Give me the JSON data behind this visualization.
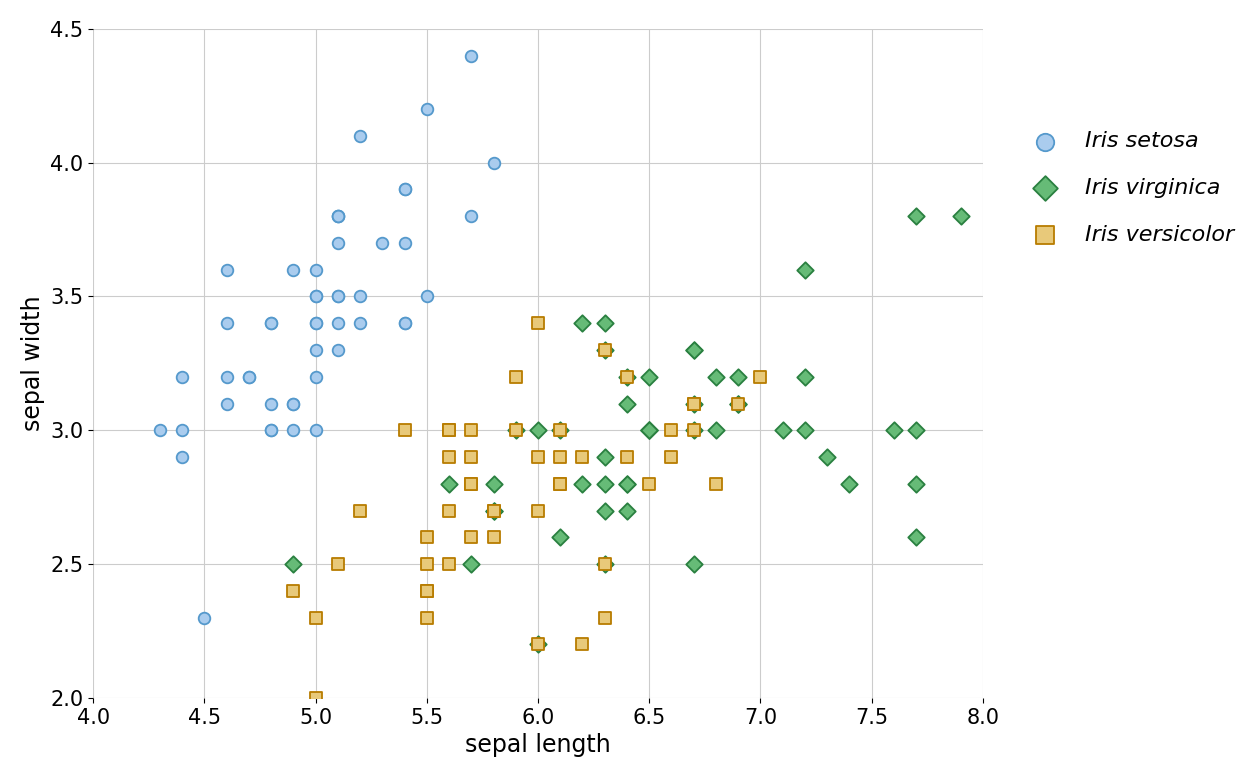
{
  "title": "",
  "xlabel": "sepal length",
  "ylabel": "sepal width",
  "xlim": [
    4.0,
    8.0
  ],
  "ylim": [
    2.0,
    4.5
  ],
  "xticks": [
    4.0,
    4.5,
    5.0,
    5.5,
    6.0,
    6.5,
    7.0,
    7.5,
    8.0
  ],
  "yticks": [
    2.0,
    2.5,
    3.0,
    3.5,
    4.0,
    4.5
  ],
  "species": {
    "setosa": {
      "edge_color": "#5599cc",
      "face_color": "#aaccee",
      "marker": "o",
      "label": "Iris setosa",
      "sepal_length": [
        5.1,
        4.9,
        4.7,
        4.6,
        5.0,
        5.4,
        4.6,
        5.0,
        4.4,
        4.9,
        5.4,
        4.8,
        4.8,
        4.3,
        5.8,
        5.7,
        5.4,
        5.1,
        5.7,
        5.1,
        5.4,
        5.1,
        4.6,
        5.1,
        4.8,
        5.0,
        5.0,
        5.2,
        5.2,
        4.7,
        4.8,
        5.4,
        5.2,
        5.5,
        4.9,
        5.0,
        5.5,
        4.9,
        4.4,
        5.1,
        5.0,
        4.5,
        4.4,
        5.0,
        5.1,
        4.8,
        5.1,
        4.6,
        5.3,
        5.0
      ],
      "sepal_width": [
        3.5,
        3.0,
        3.2,
        3.1,
        3.6,
        3.9,
        3.4,
        3.4,
        2.9,
        3.1,
        3.7,
        3.4,
        3.0,
        3.0,
        4.0,
        4.4,
        3.9,
        3.5,
        3.8,
        3.8,
        3.4,
        3.7,
        3.6,
        3.3,
        3.4,
        3.0,
        3.4,
        3.5,
        3.4,
        3.2,
        3.1,
        3.4,
        4.1,
        4.2,
        3.1,
        3.2,
        3.5,
        3.6,
        3.0,
        3.4,
        3.5,
        2.3,
        3.2,
        3.5,
        3.8,
        3.0,
        3.8,
        3.2,
        3.7,
        3.3
      ]
    },
    "virginica": {
      "edge_color": "#2a8040",
      "face_color": "#66bb77",
      "marker": "D",
      "label": "Iris virginica",
      "sepal_length": [
        6.3,
        5.8,
        7.1,
        6.3,
        6.5,
        7.6,
        4.9,
        7.3,
        6.7,
        7.2,
        6.5,
        6.4,
        6.8,
        5.7,
        5.8,
        6.4,
        6.5,
        7.7,
        7.7,
        6.0,
        6.9,
        5.6,
        7.7,
        6.3,
        6.7,
        7.2,
        6.2,
        6.1,
        6.4,
        7.2,
        7.4,
        7.9,
        6.4,
        6.3,
        6.1,
        7.7,
        6.3,
        6.4,
        6.0,
        6.9,
        6.7,
        6.9,
        5.8,
        6.8,
        6.7,
        6.7,
        6.3,
        6.5,
        6.2,
        5.9
      ],
      "sepal_width": [
        3.3,
        2.7,
        3.0,
        2.9,
        3.0,
        3.0,
        2.5,
        2.9,
        2.5,
        3.6,
        3.2,
        2.7,
        3.0,
        2.5,
        2.8,
        3.2,
        3.0,
        3.8,
        2.6,
        2.2,
        3.2,
        2.8,
        2.8,
        2.7,
        3.3,
        3.2,
        2.8,
        3.0,
        2.8,
        3.0,
        2.8,
        3.8,
        2.8,
        2.8,
        2.6,
        3.0,
        3.4,
        3.1,
        3.0,
        3.1,
        3.1,
        3.1,
        2.7,
        3.2,
        3.3,
        3.0,
        2.5,
        3.0,
        3.4,
        3.0
      ]
    },
    "versicolor": {
      "edge_color": "#b87c00",
      "face_color": "#e8c97a",
      "marker": "s",
      "label": "Iris versicolor",
      "sepal_length": [
        7.0,
        6.4,
        6.9,
        5.5,
        6.5,
        5.7,
        6.3,
        4.9,
        6.6,
        5.2,
        5.0,
        5.9,
        6.0,
        6.1,
        5.6,
        6.7,
        5.6,
        5.8,
        6.2,
        5.6,
        5.9,
        6.1,
        6.3,
        6.1,
        6.4,
        6.6,
        6.8,
        6.7,
        6.0,
        5.7,
        5.5,
        5.5,
        5.8,
        6.0,
        5.4,
        6.0,
        6.7,
        6.3,
        5.6,
        5.5,
        5.5,
        6.1,
        5.8,
        5.0,
        5.6,
        5.7,
        5.7,
        6.2,
        5.1,
        5.7
      ],
      "sepal_width": [
        3.2,
        3.2,
        3.1,
        2.3,
        2.8,
        2.8,
        3.3,
        2.4,
        2.9,
        2.7,
        2.0,
        3.0,
        2.2,
        2.9,
        2.9,
        3.1,
        3.0,
        2.7,
        2.2,
        2.5,
        3.2,
        2.8,
        2.5,
        2.8,
        2.9,
        3.0,
        2.8,
        3.0,
        2.9,
        2.6,
        2.4,
        2.4,
        2.7,
        2.7,
        3.0,
        3.4,
        3.1,
        2.3,
        3.0,
        2.5,
        2.6,
        3.0,
        2.6,
        2.3,
        2.7,
        3.0,
        2.9,
        2.9,
        2.5,
        2.8
      ]
    }
  },
  "grid_color": "#cccccc",
  "background_color": "#ffffff",
  "axis_label_fontsize": 17,
  "tick_fontsize": 15,
  "legend_fontsize": 16,
  "marker_size": 70,
  "linewidth": 1.3
}
